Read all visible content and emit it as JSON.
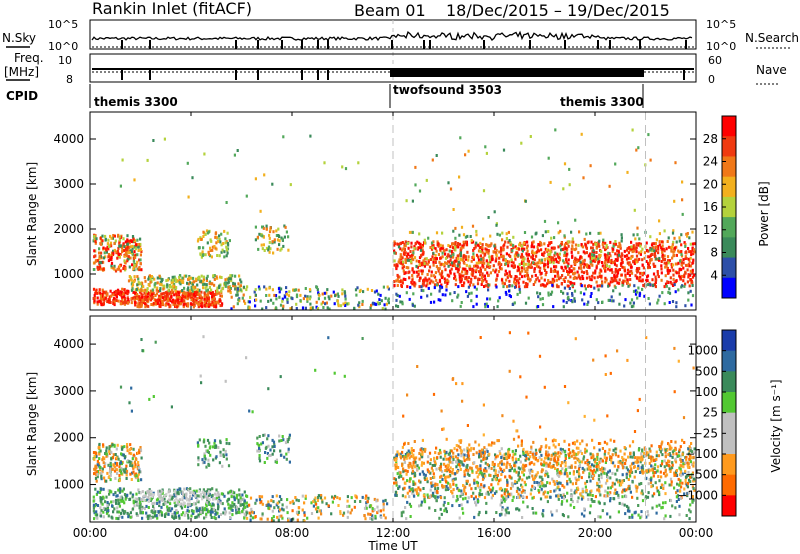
{
  "header": {
    "station": "Rankin Inlet (fitACF)",
    "beam": "Beam 01",
    "dates": "18/Dec/2015 – 19/Dec/2015"
  },
  "status_panels": {
    "nsky_label": "N.Sky",
    "nsky_ticks": [
      "10^5",
      "10^0"
    ],
    "nsearch_label": "N.Search",
    "nsearch_ticks": [
      "10^5",
      "10^0"
    ],
    "freq_label": "Freq.",
    "freq_unit": "[MHz]",
    "freq_ticks": [
      "10",
      "8"
    ],
    "nave_label": "Nave",
    "nave_ticks": [
      "60",
      "0"
    ],
    "cpid_label": "CPID",
    "cpid_segments": [
      "themis 3300",
      "twofsound 3503",
      "themis 3300"
    ]
  },
  "colors": {
    "power": [
      "#0000ff",
      "#2d4fa8",
      "#3a8a5a",
      "#52a85a",
      "#b4d23c",
      "#f2b01e",
      "#f07818",
      "#f03a10",
      "#ff0000"
    ],
    "velocity": [
      "#ff0000",
      "#ff6a00",
      "#ff9a1e",
      "#c0c0c0",
      "#c0c0c0",
      "#52c832",
      "#3a8a5a",
      "#2e6aa0",
      "#1a3caa"
    ],
    "scatter_main": "#e8402a",
    "scatter_orange": "#f08a1e",
    "scatter_green": "#4c9a5a",
    "dashline": "#c0c0c0"
  },
  "chart_data": [
    {
      "type": "heatmap",
      "name": "power",
      "ylabel": "Slant Range [km]",
      "yticks": [
        "1000",
        "2000",
        "3000",
        "4000"
      ],
      "ylim": [
        200,
        4600
      ],
      "xticks": [
        "00:00",
        "04:00",
        "08:00",
        "12:00",
        "16:00",
        "20:00",
        "00:00"
      ],
      "colorbar_label": "Power [dB]",
      "colorbar_ticks": [
        "4",
        "8",
        "12",
        "16",
        "20",
        "24",
        "28"
      ],
      "colorbar_range": [
        0,
        32
      ],
      "mode_change_times_h": [
        12.0,
        22.0
      ]
    },
    {
      "type": "heatmap",
      "name": "velocity",
      "ylabel": "Slant Range [km]",
      "yticks": [
        "1000",
        "2000",
        "3000",
        "4000"
      ],
      "ylim": [
        200,
        4600
      ],
      "xticks": [
        "00:00",
        "04:00",
        "08:00",
        "12:00",
        "16:00",
        "20:00",
        "00:00"
      ],
      "xlabel": "Time UT",
      "colorbar_label": "Velocity [m s⁻¹]",
      "colorbar_ticks": [
        "1000",
        "500",
        "100",
        "25",
        "−25",
        "−100",
        "−500",
        "−1000"
      ],
      "mode_change_times_h": [
        12.0,
        22.0
      ]
    }
  ]
}
